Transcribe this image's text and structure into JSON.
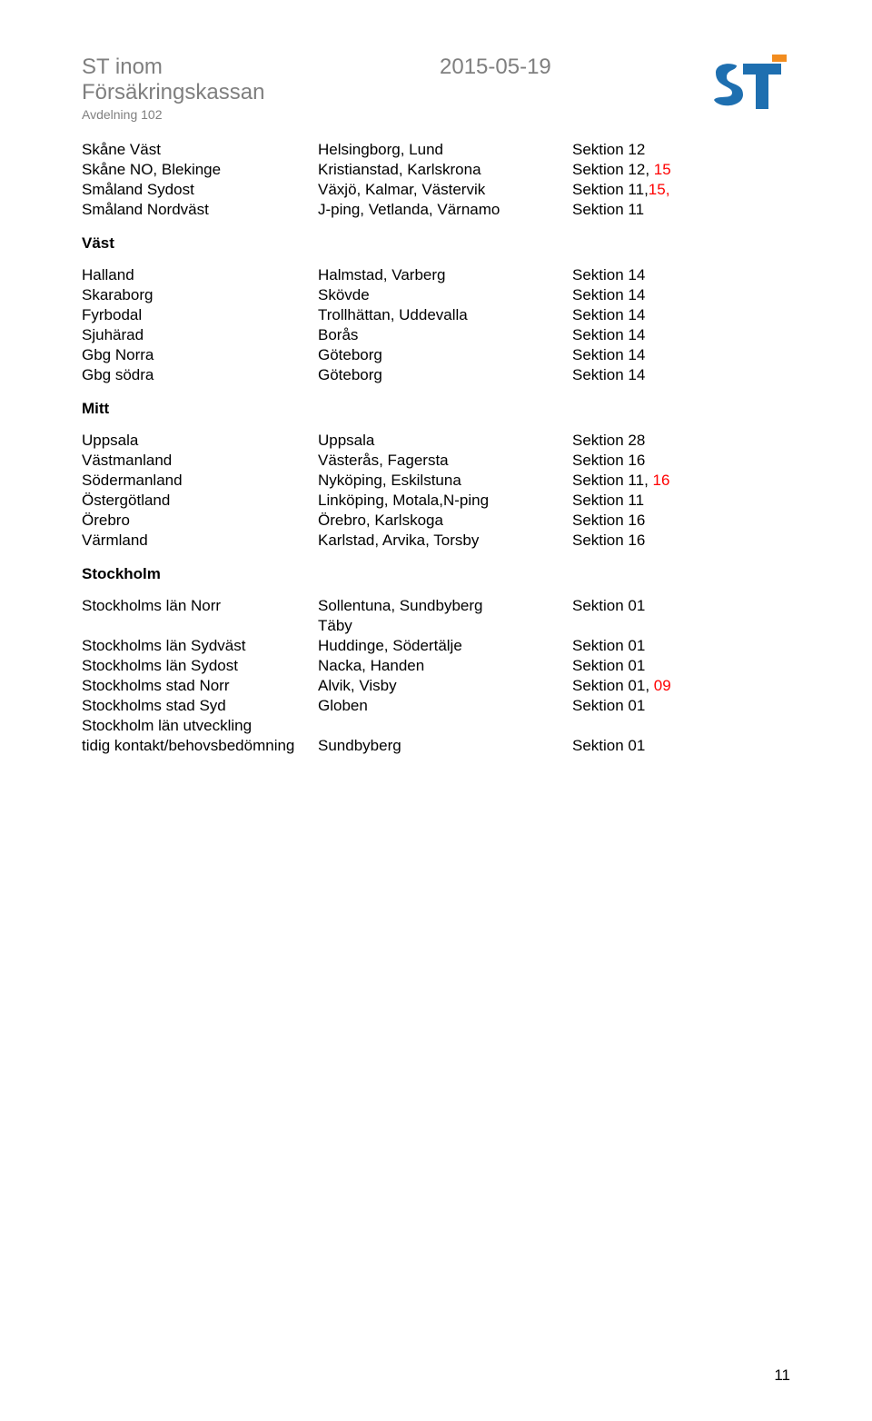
{
  "header": {
    "org_name": "ST inom Försäkringskassan",
    "sub_name": "Avdelning 102",
    "date": "2015-05-19"
  },
  "group_intro": {
    "rows": [
      {
        "c1": "Skåne Väst",
        "c2": "Helsingborg, Lund",
        "c3a": "Sektion 12",
        "c3b": ""
      },
      {
        "c1": "Skåne NO, Blekinge",
        "c2": "Kristianstad, Karlskrona",
        "c3a": "Sektion 12, ",
        "c3b": "15"
      },
      {
        "c1": "Småland Sydost",
        "c2": "Växjö, Kalmar, Västervik",
        "c3a": "Sektion 11,",
        "c3b": "15,"
      },
      {
        "c1": "Småland Nordväst",
        "c2": "J-ping, Vetlanda, Värnamo",
        "c3a": "Sektion 11",
        "c3b": ""
      }
    ]
  },
  "group_vast": {
    "title": "Väst",
    "rows": [
      {
        "c1": "Halland",
        "c2": "Halmstad, Varberg",
        "c3a": "Sektion 14",
        "c3b": ""
      },
      {
        "c1": "Skaraborg",
        "c2": "Skövde",
        "c3a": "Sektion 14",
        "c3b": ""
      },
      {
        "c1": "Fyrbodal",
        "c2": "Trollhättan, Uddevalla",
        "c3a": "Sektion 14",
        "c3b": ""
      },
      {
        "c1": "Sjuhärad",
        "c2": "Borås",
        "c3a": "Sektion 14",
        "c3b": ""
      },
      {
        "c1": "Gbg Norra",
        "c2": "Göteborg",
        "c3a": "Sektion 14",
        "c3b": ""
      },
      {
        "c1": "Gbg södra",
        "c2": "Göteborg",
        "c3a": "Sektion 14",
        "c3b": ""
      }
    ]
  },
  "group_mitt": {
    "title": "Mitt",
    "rows": [
      {
        "c1": "Uppsala",
        "c2": "Uppsala",
        "c3a": "Sektion 28",
        "c3b": ""
      },
      {
        "c1": "Västmanland",
        "c2": "Västerås, Fagersta",
        "c3a": "Sektion 16",
        "c3b": ""
      },
      {
        "c1": "Södermanland",
        "c2": "Nyköping, Eskilstuna",
        "c3a": "Sektion 11, ",
        "c3b": "16"
      },
      {
        "c1": "Östergötland",
        "c2": "Linköping, Motala,N-ping",
        "c3a": "Sektion 11",
        "c3b": ""
      },
      {
        "c1": "Örebro",
        "c2": "Örebro, Karlskoga",
        "c3a": "Sektion 16",
        "c3b": ""
      },
      {
        "c1": "Värmland",
        "c2": "Karlstad, Arvika, Torsby",
        "c3a": "Sektion 16",
        "c3b": ""
      }
    ]
  },
  "group_sthlm": {
    "title": "Stockholm",
    "rows": [
      {
        "c1": "Stockholms län Norr",
        "c2": "Sollentuna, Sundbyberg",
        "c3a": "Sektion 01",
        "c3b": ""
      },
      {
        "c1": "",
        "c2": "Täby",
        "c3a": "",
        "c3b": ""
      },
      {
        "c1": "Stockholms län Sydväst",
        "c2": "Huddinge, Södertälje",
        "c3a": "Sektion 01",
        "c3b": ""
      },
      {
        "c1": "Stockholms  län Sydost",
        "c2": "Nacka, Handen",
        "c3a": "Sektion 01",
        "c3b": ""
      },
      {
        "c1": "Stockholms stad Norr",
        "c2": "Alvik, Visby",
        "c3a": "Sektion 01, ",
        "c3b": "09"
      },
      {
        "c1": "Stockholms stad Syd",
        "c2": "Globen",
        "c3a": "Sektion 01",
        "c3b": ""
      },
      {
        "c1": "Stockholm län utveckling",
        "c2": "",
        "c3a": "",
        "c3b": ""
      },
      {
        "c1": "tidig kontakt/behovsbedömning",
        "c2": "Sundbyberg",
        "c3a": "Sektion 01",
        "c3b": ""
      }
    ]
  },
  "page_number": "11",
  "colors": {
    "text_gray": "#7f7f7f",
    "red": "#ff0000",
    "logo_blue": "#1e6fb0",
    "logo_orange": "#f28c1e"
  }
}
